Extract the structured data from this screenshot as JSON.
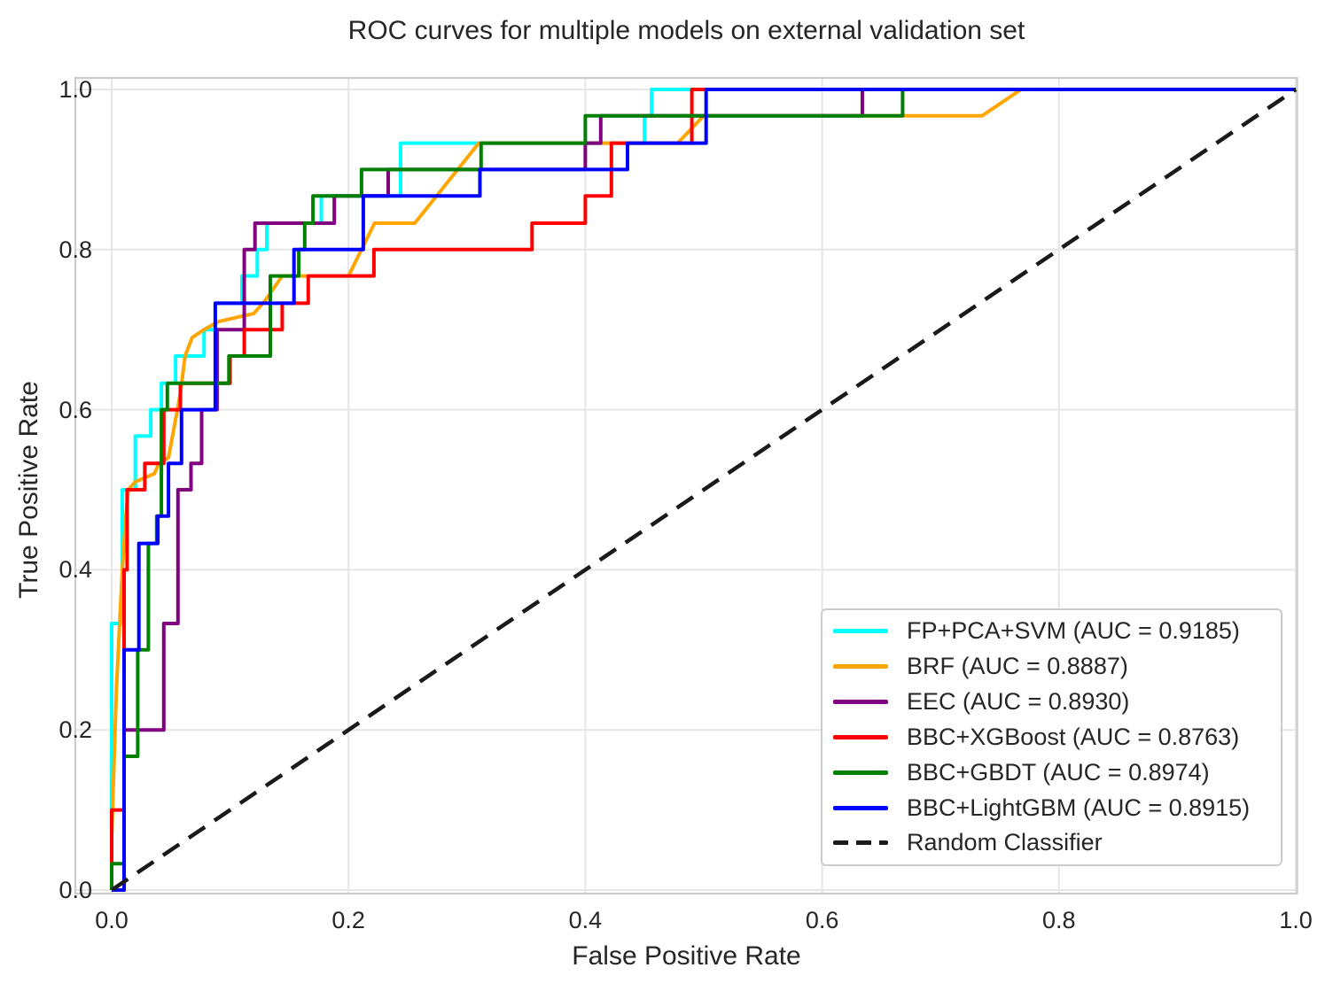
{
  "chart_data": {
    "type": "line",
    "title": "ROC curves for multiple models on external validation set",
    "xlabel": "False Positive Rate",
    "ylabel": "True Positive Rate",
    "xlim": [
      0,
      1
    ],
    "ylim": [
      0,
      1
    ],
    "grid": true,
    "legend_position": "lower right",
    "xticks": {
      "values": [
        0,
        0.2,
        0.4,
        0.6,
        0.8,
        1.0
      ],
      "labels": [
        "0.0",
        "0.2",
        "0.4",
        "0.6",
        "0.8",
        "1.0"
      ]
    },
    "yticks": {
      "values": [
        0,
        0.2,
        0.4,
        0.6,
        0.8,
        1.0
      ],
      "labels": [
        "0.0",
        "0.2",
        "0.4",
        "0.6",
        "0.8",
        "1.0"
      ]
    },
    "series": [
      {
        "name": "FP+PCA+SVM",
        "auc": 0.9185,
        "legend_label": "FP+PCA+SVM (AUC = 0.9185)",
        "color": "#00FFFF",
        "style": "solid",
        "points": [
          [
            0,
            0
          ],
          [
            0,
            0.333
          ],
          [
            0.009,
            0.333
          ],
          [
            0.009,
            0.5
          ],
          [
            0.02,
            0.5
          ],
          [
            0.02,
            0.567
          ],
          [
            0.033,
            0.567
          ],
          [
            0.033,
            0.6
          ],
          [
            0.042,
            0.6
          ],
          [
            0.042,
            0.633
          ],
          [
            0.054,
            0.633
          ],
          [
            0.054,
            0.667
          ],
          [
            0.078,
            0.667
          ],
          [
            0.078,
            0.7
          ],
          [
            0.0875,
            0.7
          ],
          [
            0.0875,
            0.733
          ],
          [
            0.11,
            0.733
          ],
          [
            0.11,
            0.767
          ],
          [
            0.123,
            0.767
          ],
          [
            0.123,
            0.8
          ],
          [
            0.131,
            0.8
          ],
          [
            0.131,
            0.833
          ],
          [
            0.177,
            0.833
          ],
          [
            0.177,
            0.867
          ],
          [
            0.244,
            0.867
          ],
          [
            0.244,
            0.933
          ],
          [
            0.45,
            0.933
          ],
          [
            0.45,
            0.967
          ],
          [
            0.456,
            0.967
          ],
          [
            0.456,
            1
          ],
          [
            1,
            1
          ]
        ]
      },
      {
        "name": "BRF",
        "auc": 0.8887,
        "legend_label": "BRF (AUC = 0.8887)",
        "color": "#FFA500",
        "style": "solid",
        "points": [
          [
            0,
            0
          ],
          [
            0,
            0.067
          ],
          [
            0.004,
            0.25
          ],
          [
            0.009,
            0.4
          ],
          [
            0.012,
            0.467
          ],
          [
            0.014,
            0.5
          ],
          [
            0.02,
            0.51
          ],
          [
            0.036,
            0.52
          ],
          [
            0.04,
            0.533
          ],
          [
            0.048,
            0.54
          ],
          [
            0.053,
            0.58
          ],
          [
            0.058,
            0.62
          ],
          [
            0.062,
            0.667
          ],
          [
            0.068,
            0.69
          ],
          [
            0.078,
            0.7
          ],
          [
            0.09,
            0.71
          ],
          [
            0.105,
            0.715
          ],
          [
            0.12,
            0.72
          ],
          [
            0.13,
            0.737
          ],
          [
            0.144,
            0.767
          ],
          [
            0.2,
            0.767
          ],
          [
            0.222,
            0.833
          ],
          [
            0.256,
            0.833
          ],
          [
            0.31,
            0.933
          ],
          [
            0.478,
            0.933
          ],
          [
            0.5,
            0.967
          ],
          [
            0.735,
            0.967
          ],
          [
            0.768,
            1
          ],
          [
            1,
            1
          ]
        ]
      },
      {
        "name": "EEC",
        "auc": 0.893,
        "legend_label": "EEC (AUC = 0.8930)",
        "color": "#800080",
        "style": "solid",
        "points": [
          [
            0,
            0
          ],
          [
            0.0105,
            0
          ],
          [
            0.0105,
            0.2
          ],
          [
            0.044,
            0.2
          ],
          [
            0.044,
            0.333
          ],
          [
            0.056,
            0.333
          ],
          [
            0.056,
            0.5
          ],
          [
            0.067,
            0.5
          ],
          [
            0.067,
            0.533
          ],
          [
            0.076,
            0.533
          ],
          [
            0.076,
            0.6
          ],
          [
            0.089,
            0.6
          ],
          [
            0.089,
            0.7
          ],
          [
            0.112,
            0.7
          ],
          [
            0.112,
            0.8
          ],
          [
            0.121,
            0.8
          ],
          [
            0.121,
            0.833
          ],
          [
            0.188,
            0.833
          ],
          [
            0.188,
            0.867
          ],
          [
            0.2335,
            0.867
          ],
          [
            0.2335,
            0.9
          ],
          [
            0.4,
            0.9
          ],
          [
            0.4,
            0.933
          ],
          [
            0.413,
            0.933
          ],
          [
            0.413,
            0.967
          ],
          [
            0.634,
            0.967
          ],
          [
            0.634,
            1
          ],
          [
            1,
            1
          ]
        ]
      },
      {
        "name": "BBC+XGBoost",
        "auc": 0.8763,
        "legend_label": "BBC+XGBoost (AUC = 0.8763)",
        "color": "#FF0000",
        "style": "solid",
        "points": [
          [
            0,
            0
          ],
          [
            0,
            0.1
          ],
          [
            0.0105,
            0.1
          ],
          [
            0.0105,
            0.4
          ],
          [
            0.013,
            0.4
          ],
          [
            0.013,
            0.5
          ],
          [
            0.028,
            0.5
          ],
          [
            0.028,
            0.533
          ],
          [
            0.044,
            0.533
          ],
          [
            0.044,
            0.6
          ],
          [
            0.058,
            0.6
          ],
          [
            0.058,
            0.633
          ],
          [
            0.1,
            0.633
          ],
          [
            0.1,
            0.667
          ],
          [
            0.112,
            0.667
          ],
          [
            0.112,
            0.7
          ],
          [
            0.144,
            0.7
          ],
          [
            0.144,
            0.733
          ],
          [
            0.166,
            0.733
          ],
          [
            0.166,
            0.767
          ],
          [
            0.2215,
            0.767
          ],
          [
            0.2215,
            0.8
          ],
          [
            0.355,
            0.8
          ],
          [
            0.355,
            0.833
          ],
          [
            0.4,
            0.833
          ],
          [
            0.4,
            0.867
          ],
          [
            0.422,
            0.867
          ],
          [
            0.422,
            0.933
          ],
          [
            0.49,
            0.933
          ],
          [
            0.49,
            1
          ],
          [
            1,
            1
          ]
        ]
      },
      {
        "name": "BBC+GBDT",
        "auc": 0.8974,
        "legend_label": "BBC+GBDT (AUC = 0.8974)",
        "color": "#008000",
        "style": "solid",
        "points": [
          [
            0,
            0
          ],
          [
            0,
            0.033
          ],
          [
            0.0105,
            0.033
          ],
          [
            0.0105,
            0.167
          ],
          [
            0.022,
            0.167
          ],
          [
            0.022,
            0.3
          ],
          [
            0.031,
            0.3
          ],
          [
            0.031,
            0.433
          ],
          [
            0.038,
            0.433
          ],
          [
            0.038,
            0.467
          ],
          [
            0.042,
            0.467
          ],
          [
            0.042,
            0.6
          ],
          [
            0.047,
            0.6
          ],
          [
            0.047,
            0.633
          ],
          [
            0.099,
            0.633
          ],
          [
            0.099,
            0.667
          ],
          [
            0.134,
            0.667
          ],
          [
            0.134,
            0.767
          ],
          [
            0.158,
            0.767
          ],
          [
            0.158,
            0.8
          ],
          [
            0.163,
            0.8
          ],
          [
            0.163,
            0.833
          ],
          [
            0.17,
            0.833
          ],
          [
            0.17,
            0.867
          ],
          [
            0.211,
            0.867
          ],
          [
            0.211,
            0.9
          ],
          [
            0.312,
            0.9
          ],
          [
            0.312,
            0.933
          ],
          [
            0.4,
            0.933
          ],
          [
            0.4,
            0.967
          ],
          [
            0.668,
            0.967
          ],
          [
            0.668,
            1
          ],
          [
            1,
            1
          ]
        ]
      },
      {
        "name": "BBC+LightGBM",
        "auc": 0.8915,
        "legend_label": "BBC+LightGBM (AUC = 0.8915)",
        "color": "#0000FF",
        "style": "solid",
        "points": [
          [
            0,
            0
          ],
          [
            0.0105,
            0
          ],
          [
            0.0105,
            0.3
          ],
          [
            0.023,
            0.3
          ],
          [
            0.023,
            0.433
          ],
          [
            0.039,
            0.433
          ],
          [
            0.039,
            0.467
          ],
          [
            0.048,
            0.467
          ],
          [
            0.048,
            0.533
          ],
          [
            0.059,
            0.533
          ],
          [
            0.059,
            0.6
          ],
          [
            0.0875,
            0.6
          ],
          [
            0.0875,
            0.733
          ],
          [
            0.154,
            0.733
          ],
          [
            0.154,
            0.8
          ],
          [
            0.2125,
            0.8
          ],
          [
            0.2125,
            0.867
          ],
          [
            0.311,
            0.867
          ],
          [
            0.311,
            0.9
          ],
          [
            0.4356,
            0.9
          ],
          [
            0.4356,
            0.933
          ],
          [
            0.502,
            0.933
          ],
          [
            0.502,
            1
          ],
          [
            1,
            1
          ]
        ]
      },
      {
        "name": "Random Classifier",
        "legend_label": "Random Classifier",
        "color": "#1a1a1a",
        "style": "dashed",
        "points": [
          [
            0,
            0
          ],
          [
            1,
            1
          ]
        ]
      }
    ]
  },
  "colors": {
    "background": "#FFFFFF",
    "grid": "#E6E6E6",
    "spine": "#CCCCCC",
    "text": "#262626"
  }
}
